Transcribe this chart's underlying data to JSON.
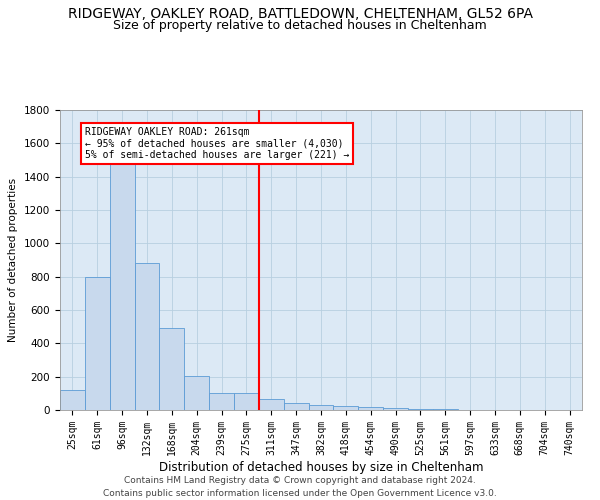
{
  "title": "RIDGEWAY, OAKLEY ROAD, BATTLEDOWN, CHELTENHAM, GL52 6PA",
  "subtitle": "Size of property relative to detached houses in Cheltenham",
  "xlabel": "Distribution of detached houses by size in Cheltenham",
  "ylabel": "Number of detached properties",
  "footnote1": "Contains HM Land Registry data © Crown copyright and database right 2024.",
  "footnote2": "Contains public sector information licensed under the Open Government Licence v3.0.",
  "bar_labels": [
    "25sqm",
    "61sqm",
    "96sqm",
    "132sqm",
    "168sqm",
    "204sqm",
    "239sqm",
    "275sqm",
    "311sqm",
    "347sqm",
    "382sqm",
    "418sqm",
    "454sqm",
    "490sqm",
    "525sqm",
    "561sqm",
    "597sqm",
    "633sqm",
    "668sqm",
    "704sqm",
    "740sqm"
  ],
  "bar_values": [
    120,
    800,
    1520,
    880,
    490,
    205,
    100,
    100,
    65,
    40,
    28,
    25,
    20,
    10,
    5,
    4,
    3,
    2,
    1,
    1,
    1
  ],
  "bar_color": "#c8d9ed",
  "bar_edge_color": "#5b9bd5",
  "vline_index": 7,
  "vline_color": "red",
  "annotation_title": "RIDGEWAY OAKLEY ROAD: 261sqm",
  "annotation_line1": "← 95% of detached houses are smaller (4,030)",
  "annotation_line2": "5% of semi-detached houses are larger (221) →",
  "annotation_box_color": "white",
  "annotation_box_edge": "red",
  "ylim": [
    0,
    1800
  ],
  "yticks": [
    0,
    200,
    400,
    600,
    800,
    1000,
    1200,
    1400,
    1600,
    1800
  ],
  "grid_color": "#b8cfe0",
  "background_color": "#dce9f5",
  "title_fontsize": 10,
  "subtitle_fontsize": 9,
  "footnote_fontsize": 6.5
}
